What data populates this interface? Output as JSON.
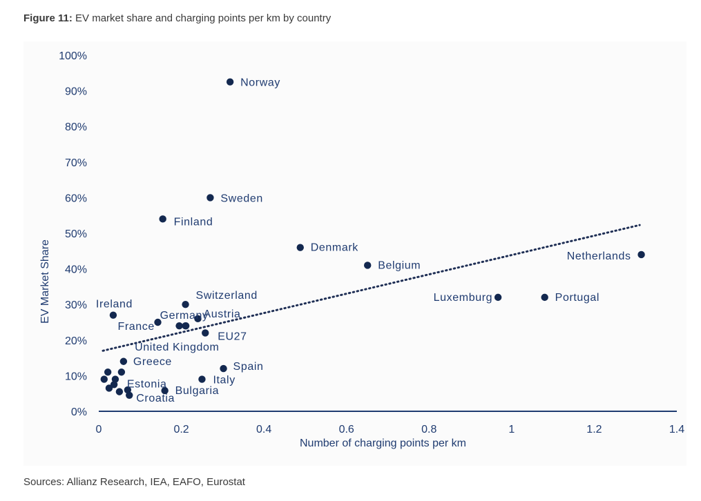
{
  "header": {
    "figure_number": "Figure 11:",
    "title": "EV market share and charging points per km by country"
  },
  "footer": {
    "sources": "Sources: Allianz Research, IEA, EAFO, Eurostat"
  },
  "colors": {
    "marker": "#13284f",
    "axis_text": "#1f3b70",
    "axis_line": "#1f3b70",
    "trendline": "#1f2f55",
    "panel_background": "#fbfbfb"
  },
  "chart_data": {
    "type": "scatter",
    "title": "",
    "xlabel": "Number of charging points per km",
    "ylabel": "EV Market Share",
    "xlim": [
      0,
      1.4
    ],
    "ylim": [
      0,
      100
    ],
    "x_ticks": [
      0,
      0.2,
      0.4,
      0.6,
      0.8,
      1,
      1.2,
      1.4
    ],
    "x_tick_labels": [
      "0",
      "0.2",
      "0.4",
      "0.6",
      "0.8",
      "1",
      "1.2",
      "1.4"
    ],
    "y_ticks": [
      0,
      10,
      20,
      30,
      40,
      50,
      60,
      70,
      80,
      90,
      100
    ],
    "y_tick_labels": [
      "0%",
      "10%",
      "20%",
      "30%",
      "40%",
      "50%",
      "60%",
      "70%",
      "80%",
      "90%",
      "100%"
    ],
    "grid": false,
    "legend": "none",
    "trendline": {
      "style": "dotted",
      "x": [
        0.01,
        1.31
      ],
      "y": [
        17,
        52.3
      ]
    },
    "points": [
      {
        "label": "Norway",
        "x": 0.318,
        "y": 92.5
      },
      {
        "label": "Sweden",
        "x": 0.27,
        "y": 60
      },
      {
        "label": "Finland",
        "x": 0.155,
        "y": 54
      },
      {
        "label": "Denmark",
        "x": 0.488,
        "y": 46
      },
      {
        "label": "Belgium",
        "x": 0.651,
        "y": 41
      },
      {
        "label": "Netherlands",
        "x": 1.314,
        "y": 44
      },
      {
        "label": "Luxemburg",
        "x": 0.967,
        "y": 32
      },
      {
        "label": "Portugal",
        "x": 1.08,
        "y": 32
      },
      {
        "label": "Switzerland",
        "x": 0.21,
        "y": 30
      },
      {
        "label": "Ireland",
        "x": 0.035,
        "y": 27
      },
      {
        "label": "Austria",
        "x": 0.24,
        "y": 26
      },
      {
        "label": "Germany",
        "x": 0.195,
        "y": 24
      },
      {
        "label": "",
        "x": 0.21,
        "y": 24
      },
      {
        "label": "France",
        "x": 0.143,
        "y": 25
      },
      {
        "label": "EU27",
        "x": 0.258,
        "y": 22
      },
      {
        "label": "United Kingdom",
        "x": 0.211,
        "y": 24
      },
      {
        "label": "Greece",
        "x": 0.06,
        "y": 14
      },
      {
        "label": "Spain",
        "x": 0.302,
        "y": 12
      },
      {
        "label": "Italy",
        "x": 0.25,
        "y": 9
      },
      {
        "label": "Estonia",
        "x": 0.04,
        "y": 9
      },
      {
        "label": "",
        "x": 0.055,
        "y": 11
      },
      {
        "label": "",
        "x": 0.022,
        "y": 11
      },
      {
        "label": "",
        "x": 0.013,
        "y": 9
      },
      {
        "label": "",
        "x": 0.037,
        "y": 7.5
      },
      {
        "label": "",
        "x": 0.025,
        "y": 6.5
      },
      {
        "label": "",
        "x": 0.07,
        "y": 6
      },
      {
        "label": "",
        "x": 0.05,
        "y": 5.5
      },
      {
        "label": "Bulgaria",
        "x": 0.16,
        "y": 5.8
      },
      {
        "label": "Croatia",
        "x": 0.074,
        "y": 4.5
      }
    ]
  }
}
